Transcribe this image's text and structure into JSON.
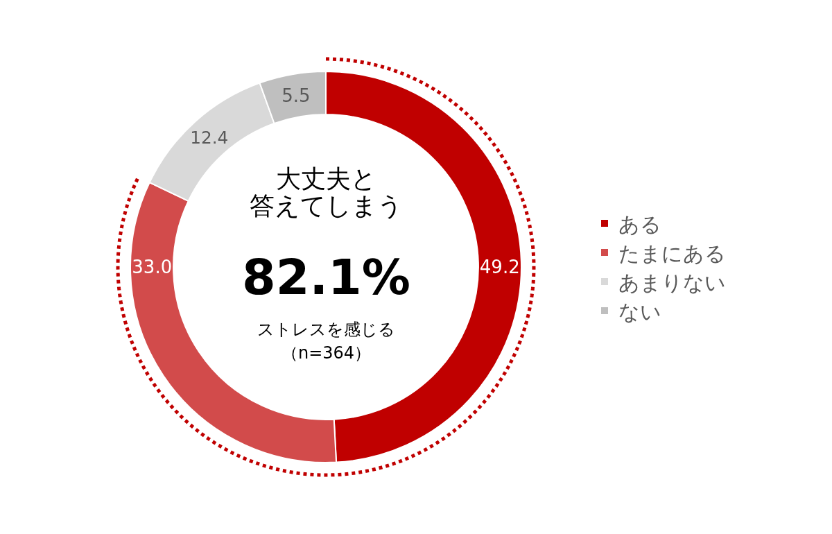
{
  "chart_data": {
    "type": "donut",
    "categories": [
      "ある",
      "たまにある",
      "あまりない",
      "ない"
    ],
    "values": [
      49.2,
      33.0,
      12.4,
      5.5
    ],
    "value_labels": [
      "49.2",
      "33.0",
      "12.4",
      "5.5"
    ],
    "colors": [
      "#c00000",
      "#d24b4b",
      "#d9d9d9",
      "#bfbfbf"
    ],
    "annotations": [
      "大丈夫と",
      "答えてしまう",
      "82.1%",
      "ストレスを感じる",
      "（n=364）"
    ],
    "legend": "right"
  }
}
